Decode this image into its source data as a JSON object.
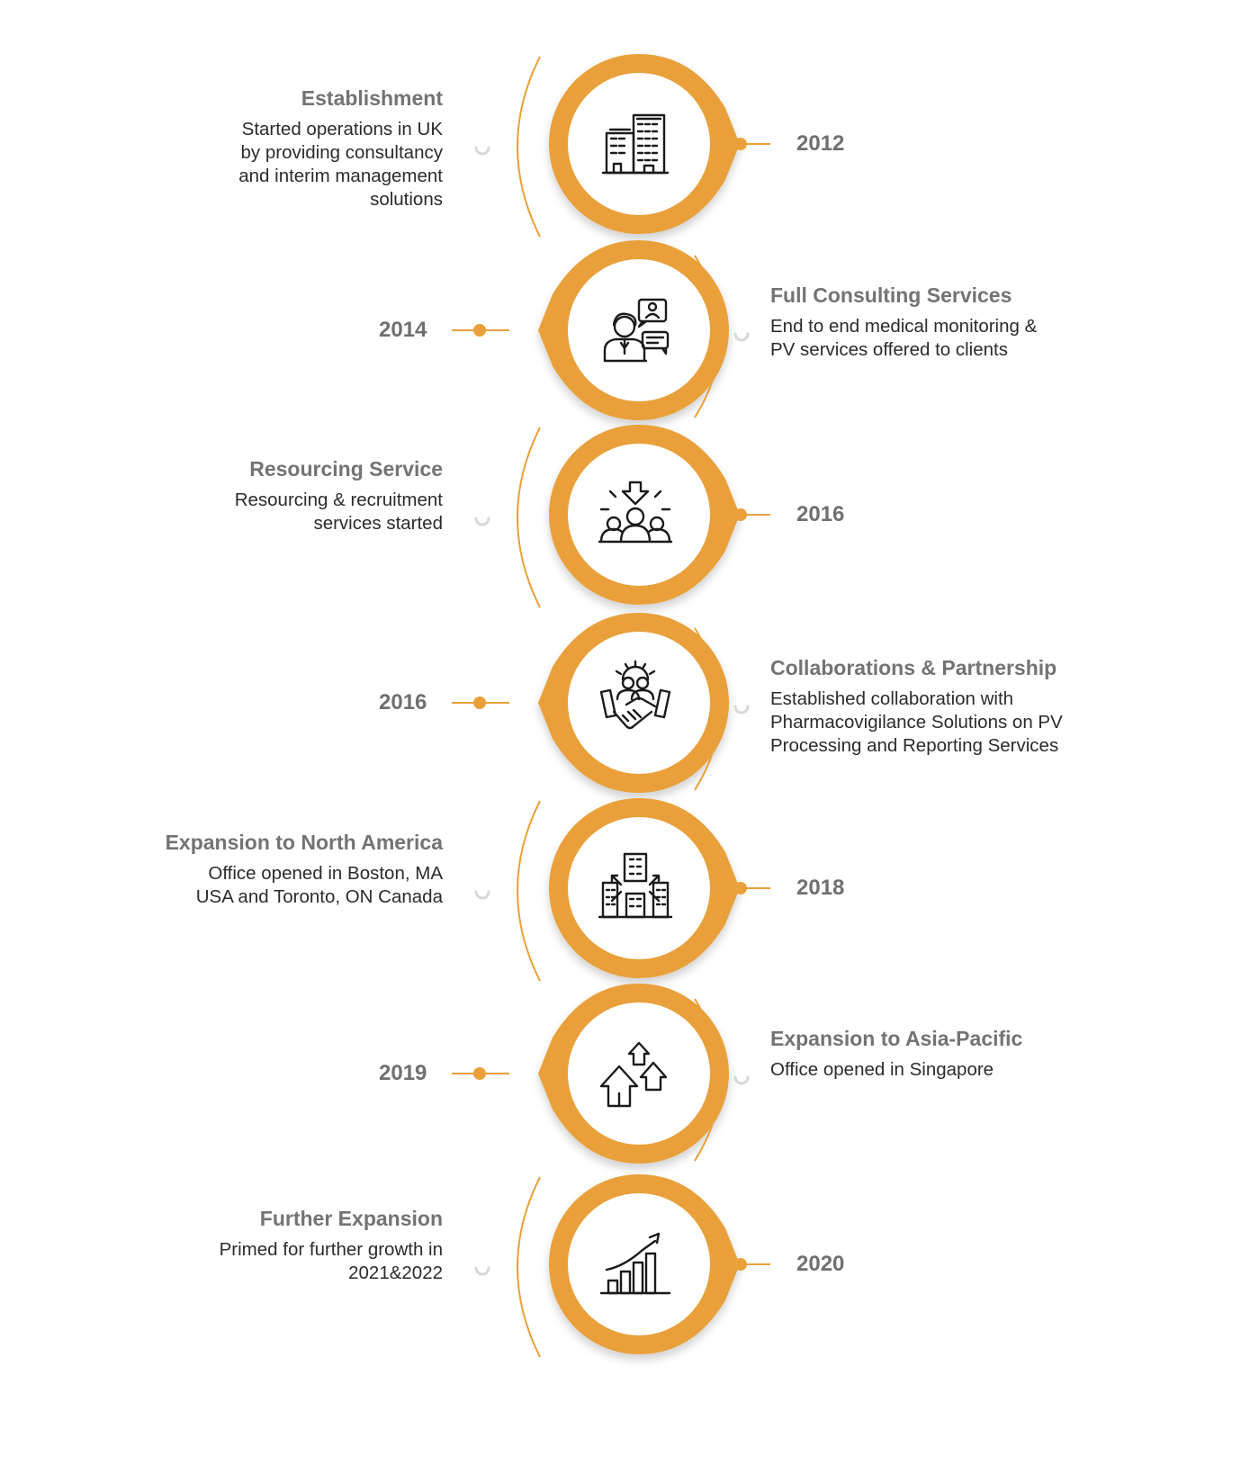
{
  "milestones": [
    {
      "year": "2012",
      "title": "Establishment",
      "desc": "Started operations in UK by providing consultancy and interim management solutions",
      "side": "left",
      "icon": "office-buildings-icon"
    },
    {
      "year": "2014",
      "title": "Full Consulting Services",
      "desc": "End to end medical monitoring & PV services offered to clients",
      "side": "right",
      "icon": "consultant-chat-icon"
    },
    {
      "year": "2016",
      "title": "Resourcing Service",
      "desc": "Resourcing & recruitment services started",
      "side": "left",
      "icon": "recruitment-group-icon"
    },
    {
      "year": "2016",
      "title": "Collaborations & Partnership",
      "desc": "Established collaboration with Pharmacovigilance Solutions on PV Processing and Reporting Services",
      "side": "right",
      "icon": "handshake-partnership-icon"
    },
    {
      "year": "2018",
      "title": "Expansion to North America",
      "desc": "Office opened in Boston, MA USA and Toronto, ON Canada",
      "side": "left",
      "icon": "city-expansion-icon"
    },
    {
      "year": "2019",
      "title": "Expansion to Asia-Pacific",
      "desc": "Office opened in Singapore",
      "side": "right",
      "icon": "growth-arrows-icon"
    },
    {
      "year": "2020",
      "title": "Further Expansion",
      "desc": "Primed for further growth in 2021&2022",
      "side": "left",
      "icon": "bar-chart-growth-icon"
    }
  ],
  "colors": {
    "accent": "#e9a03a",
    "year_text": "#6f6f6f",
    "title_text": "#737373",
    "desc_text": "#2b2b2b"
  }
}
